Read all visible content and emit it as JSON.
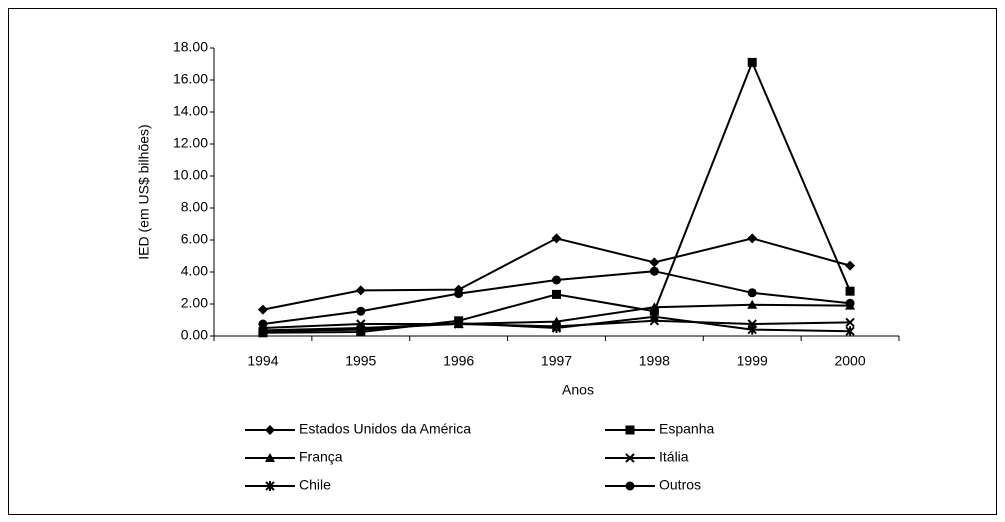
{
  "chart_data": {
    "type": "line",
    "ylabel": "IED (em US$ bilhões)",
    "xlabel": "Anos",
    "categories": [
      "1994",
      "1995",
      "1996",
      "1997",
      "1998",
      "1999",
      "2000"
    ],
    "series": [
      {
        "name": "Estados Unidos da América",
        "color": "#000000",
        "marker": "diamond",
        "values": [
          1.65,
          2.85,
          2.9,
          6.1,
          4.6,
          6.1,
          4.4
        ]
      },
      {
        "name": "Espanha",
        "color": "#000000",
        "marker": "square",
        "values": [
          0.2,
          0.25,
          0.95,
          2.6,
          1.55,
          17.1,
          2.8
        ]
      },
      {
        "name": "França",
        "color": "#000000",
        "marker": "triangle",
        "values": [
          0.35,
          0.5,
          0.75,
          0.9,
          1.8,
          1.95,
          1.9
        ]
      },
      {
        "name": "Itália",
        "color": "#000000",
        "marker": "x",
        "values": [
          0.5,
          0.75,
          0.75,
          0.6,
          0.95,
          0.75,
          0.85
        ]
      },
      {
        "name": "Chile",
        "color": "#000000",
        "marker": "asterisk",
        "values": [
          0.3,
          0.4,
          0.8,
          0.5,
          1.2,
          0.4,
          0.3
        ]
      },
      {
        "name": "Outros",
        "color": "#000000",
        "marker": "circle",
        "values": [
          0.75,
          1.55,
          2.65,
          3.5,
          4.05,
          2.7,
          2.05
        ]
      }
    ],
    "ylim": [
      0,
      18
    ],
    "yticks": [
      {
        "value": 0,
        "label": "0.00"
      },
      {
        "value": 2,
        "label": "2.00"
      },
      {
        "value": 4,
        "label": "4.00"
      },
      {
        "value": 6,
        "label": "6.00"
      },
      {
        "value": 8,
        "label": "8.00"
      },
      {
        "value": 10,
        "label": "10.00"
      },
      {
        "value": 12,
        "label": "12.00"
      },
      {
        "value": 14,
        "label": "14.00"
      },
      {
        "value": 16,
        "label": "16.00"
      },
      {
        "value": 18,
        "label": "18.00"
      }
    ],
    "grid": false,
    "legend": "bottom"
  }
}
